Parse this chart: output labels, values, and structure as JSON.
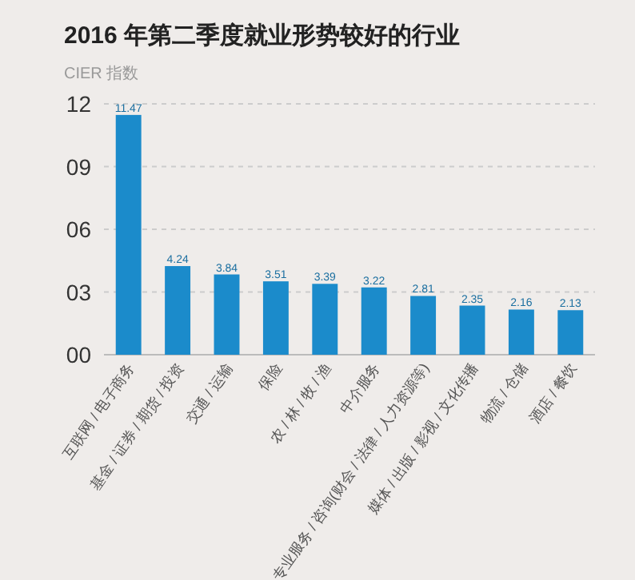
{
  "chart_data": {
    "type": "bar",
    "title": "2016 年第二季度就业形势较好的行业",
    "ylabel": "CIER 指数",
    "categories": [
      "互联网 / 电子商务",
      "基金 / 证券 / 期货 / 投资",
      "交通 / 运输",
      "保险",
      "农 / 林 / 牧 / 渔",
      "中介服务",
      "专业服务 / 咨询(财会 / 法律 / 人力资源等)",
      "媒体 / 出版 / 影视 / 文化传播",
      "物流 / 仓储",
      "酒店 / 餐饮"
    ],
    "values": [
      11.47,
      4.24,
      3.84,
      3.51,
      3.39,
      3.22,
      2.81,
      2.35,
      2.16,
      2.13
    ],
    "color": "#1b8bcb",
    "ylim": [
      0,
      12
    ],
    "yticks": [
      {
        "value": 0,
        "label": "00"
      },
      {
        "value": 3,
        "label": "03"
      },
      {
        "value": 6,
        "label": "06"
      },
      {
        "value": 9,
        "label": "09"
      },
      {
        "value": 12,
        "label": "12"
      }
    ],
    "grid": "y",
    "data_labels": true
  }
}
